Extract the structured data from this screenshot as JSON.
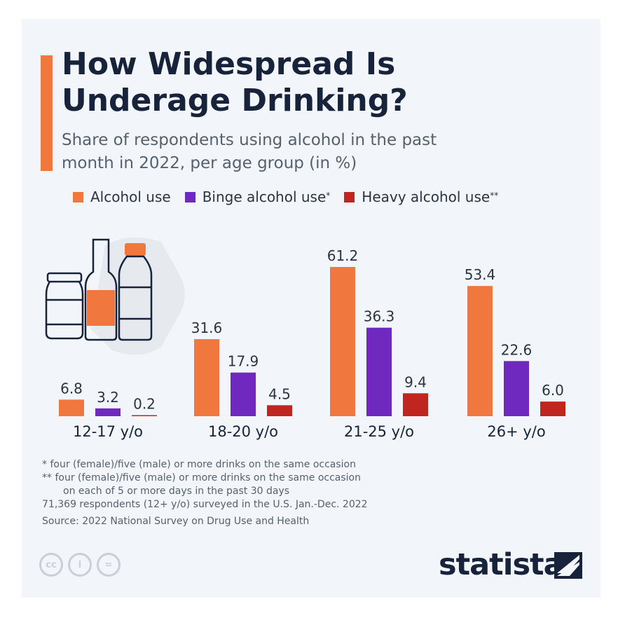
{
  "title": "How Widespread Is Underage Drinking?",
  "subtitle": "Share of respondents using alcohol in the past month in 2022, per age group (in %)",
  "legend": [
    {
      "label": "Alcohol use",
      "mark": "",
      "color": "#f0783f"
    },
    {
      "label": "Binge alcohol use",
      "mark": "*",
      "color": "#7029be"
    },
    {
      "label": "Heavy alcohol use",
      "mark": "**",
      "color": "#c0261f"
    }
  ],
  "chart_data": {
    "type": "bar",
    "categories": [
      "12-17 y/o",
      "18-20 y/o",
      "21-25 y/o",
      "26+ y/o"
    ],
    "series": [
      {
        "name": "Alcohol use",
        "values": [
          6.8,
          31.6,
          61.2,
          53.4
        ],
        "labels": [
          "6.8",
          "31.6",
          "61.2",
          "53.4"
        ]
      },
      {
        "name": "Binge alcohol use",
        "values": [
          3.2,
          17.9,
          36.3,
          22.6
        ],
        "labels": [
          "3.2",
          "17.9",
          "36.3",
          "22.6"
        ]
      },
      {
        "name": "Heavy alcohol use",
        "values": [
          0.2,
          4.5,
          9.4,
          6.0
        ],
        "labels": [
          "0.2",
          "4.5",
          "9.4",
          "6.0"
        ]
      }
    ],
    "title": "How Widespread Is Underage Drinking?",
    "ylabel": "in %",
    "ylim": [
      0,
      61.2
    ],
    "grid": false,
    "legend": "top-left"
  },
  "footnotes": {
    "note1": "*   four (female)/five (male) or more drinks on the same occasion",
    "note2a": "** four (female)/five (male) or more drinks on the same occasion",
    "note2b": "on each of 5 or more days in the past 30 days",
    "note3": "71,369 respondents (12+ y/o) surveyed in the U.S. Jan.-Dec. 2022",
    "source": "Source: 2022 National Survey on Drug Use and Health"
  },
  "license_icons": [
    "cc",
    "i",
    "="
  ],
  "brand": "statista"
}
